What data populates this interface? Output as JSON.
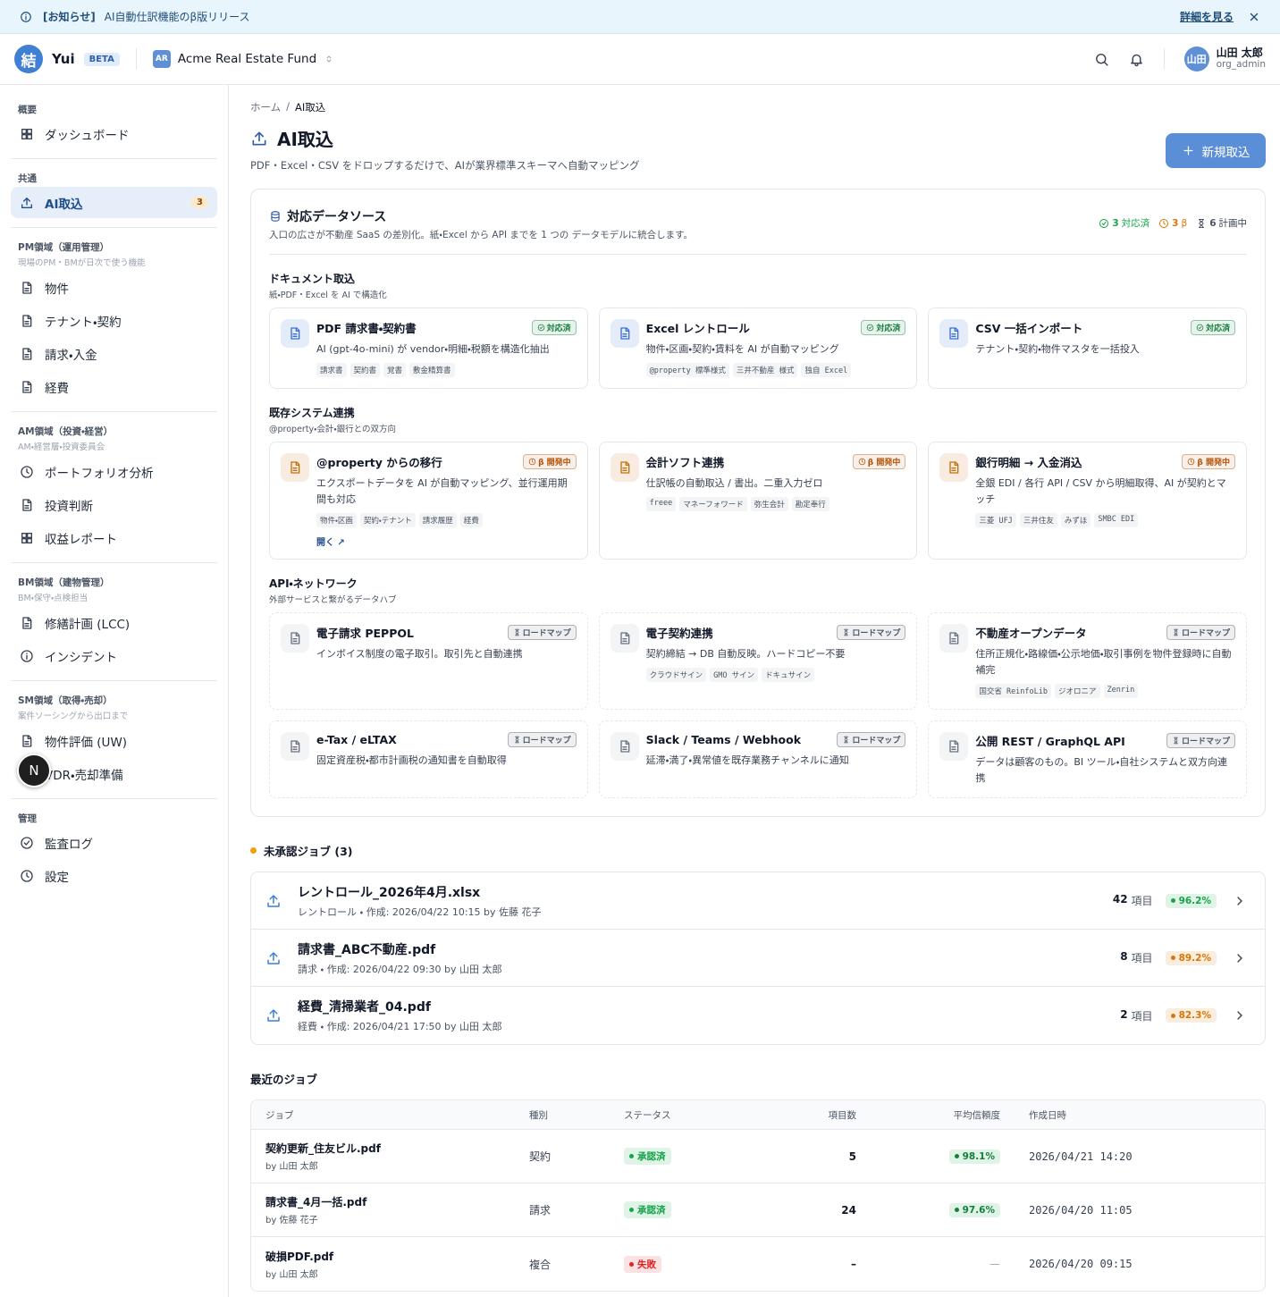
{
  "banner": {
    "tag": "[お知らせ]",
    "text": "AI自動仕訳機能のβ版リリース",
    "link": "詳細を見る"
  },
  "header": {
    "logo": "結",
    "app": "Yui",
    "badge": "BETA",
    "org_initials": "AR",
    "org": "Acme Real Estate Fund",
    "user_initials": "山田",
    "user": "山田 太郎",
    "role": "org_admin"
  },
  "sidebar": {
    "sections": [
      {
        "title": "概要",
        "items": [
          {
            "label": "ダッシュボード"
          }
        ]
      },
      {
        "title": "共通",
        "items": [
          {
            "label": "AI取込",
            "count": 3,
            "active": true
          }
        ]
      },
      {
        "title": "PM領域（運用管理）",
        "subtitle": "現場のPM・BMが日次で使う機能",
        "items": [
          {
            "label": "物件"
          },
          {
            "label": "テナント・契約"
          },
          {
            "label": "請求・入金"
          },
          {
            "label": "経費"
          }
        ]
      },
      {
        "title": "AM領域（投資・経営）",
        "subtitle": "AM・経営層・投資委員会",
        "items": [
          {
            "label": "ポートフォリオ分析"
          },
          {
            "label": "投資判断"
          },
          {
            "label": "収益レポート"
          }
        ]
      },
      {
        "title": "BM領域（建物管理）",
        "subtitle": "BM・保守・点検担当",
        "items": [
          {
            "label": "修繕計画 (LCC)"
          },
          {
            "label": "インシデント"
          }
        ]
      },
      {
        "title": "SM領域（取得・売却）",
        "subtitle": "案件ソーシングから出口まで",
        "items": [
          {
            "label": "物件評価 (UW)"
          },
          {
            "label": "VDR・売却準備"
          }
        ]
      },
      {
        "title": "管理",
        "items": [
          {
            "label": "監査ログ"
          },
          {
            "label": "設定"
          }
        ]
      }
    ]
  },
  "floating": "N",
  "breadcrumb": [
    "ホーム",
    "AI取込"
  ],
  "page": {
    "title": "AI取込",
    "subtitle": "PDF・Excel・CSV をドロップするだけで、AIが業界標準スキーマへ自動マッピング",
    "button": "新規取込"
  },
  "sources": {
    "title": "対応データソース",
    "subtitle": "入口の広さが不動産 SaaS の差別化。紙・Excel から API までを 1 つの データモデルに統合します。",
    "summary": [
      {
        "count": 3,
        "label": "対応済",
        "color": "#16a34a"
      },
      {
        "count": 3,
        "label": "β",
        "color": "#d97706"
      },
      {
        "count": 6,
        "label": "計画中",
        "color": "#4b5563"
      }
    ],
    "groups": [
      {
        "title": "ドキュメント取込",
        "subtitle": "紙・PDF・Excel を AI で構造化",
        "icon_color": "#3b6fd1",
        "dashed": false,
        "cards": [
          {
            "title": "PDF 請求書・契約書",
            "status": "対応済",
            "color": "#15803d",
            "desc": "AI (gpt-4o-mini) が vendor・明細・税額を構造化抽出",
            "tags": [
              "請求書",
              "契約書",
              "覚書",
              "敷金精算書"
            ]
          },
          {
            "title": "Excel レントロール",
            "status": "対応済",
            "color": "#15803d",
            "desc": "物件・区画・契約・賃料を AI が自動マッピング",
            "tags": [
              "@property 標準様式",
              "三井不動産 様式",
              "独自 Excel"
            ]
          },
          {
            "title": "CSV 一括インポート",
            "status": "対応済",
            "color": "#15803d",
            "desc": "テナント・契約・物件マスタを一括投入",
            "tags": []
          }
        ]
      },
      {
        "title": "既存システム連携",
        "subtitle": "@property・会計・銀行との双方向",
        "icon_color": "#c2710c",
        "dashed": false,
        "cards": [
          {
            "title": "@property からの移行",
            "status": "β 開発中",
            "color": "#b45309",
            "desc": "エクスポートデータを AI が自動マッピング、並行運用期間も対応",
            "tags": [
              "物件・区画",
              "契約・テナント",
              "請求履歴",
              "経費"
            ],
            "link": "開く ↗"
          },
          {
            "title": "会計ソフト連携",
            "status": "β 開発中",
            "color": "#b45309",
            "desc": "仕訳帳の自動取込 / 書出。二重入力ゼロ",
            "tags": [
              "freee",
              "マネーフォワード",
              "弥生会計",
              "勘定奉行"
            ]
          },
          {
            "title": "銀行明細 → 入金消込",
            "status": "β 開発中",
            "color": "#b45309",
            "desc": "全銀 EDI / 各行 API / CSV から明細取得、AI が契約とマッチ",
            "tags": [
              "三菱 UFJ",
              "三井住友",
              "みずほ",
              "SMBC EDI"
            ]
          }
        ]
      },
      {
        "title": "API・ネットワーク",
        "subtitle": "外部サービスと繋がるデータハブ",
        "icon_color": "#6b7280",
        "dashed": true,
        "cards": [
          {
            "title": "電子請求 PEPPOL",
            "status": "ロードマップ",
            "color": "#4b5563",
            "desc": "インボイス制度の電子取引。取引先と自動連携",
            "tags": []
          },
          {
            "title": "電子契約連携",
            "status": "ロードマップ",
            "color": "#4b5563",
            "desc": "契約締結 → DB 自動反映。ハードコピー不要",
            "tags": [
              "クラウドサイン",
              "GMO サイン",
              "ドキュサイン"
            ]
          },
          {
            "title": "不動産オープンデータ",
            "status": "ロードマップ",
            "color": "#4b5563",
            "desc": "住所正規化・路線価・公示地価・取引事例を物件登録時に自動補完",
            "tags": [
              "国交省 ReinfoLib",
              "ジオロニア",
              "Zenrin"
            ]
          },
          {
            "title": "e-Tax / eLTAX",
            "status": "ロードマップ",
            "color": "#4b5563",
            "desc": "固定資産税・都市計画税の通知書を自動取得",
            "tags": []
          },
          {
            "title": "Slack / Teams / Webhook",
            "status": "ロードマップ",
            "color": "#4b5563",
            "desc": "延滞・満了・異常値を既存業務チャンネルに通知",
            "tags": []
          },
          {
            "title": "公開 REST / GraphQL API",
            "status": "ロードマップ",
            "color": "#4b5563",
            "desc": "データは顧客のもの。BI ツール・自社システムと双方向連携",
            "tags": []
          }
        ]
      }
    ]
  },
  "pending": {
    "title": "未承認ジョブ (3)",
    "jobs": [
      {
        "name": "レントロール_2026年4月.xlsx",
        "meta": "レントロール ・ 作成: 2026/04/22 10:15 by 佐藤 花子",
        "items": 42,
        "unit": "項目",
        "confidence": "96.2%",
        "color": "#16a34a"
      },
      {
        "name": "請求書_ABC不動産.pdf",
        "meta": "請求 ・ 作成: 2026/04/22 09:30 by 山田 太郎",
        "items": 8,
        "unit": "項目",
        "confidence": "89.2%",
        "color": "#d97706"
      },
      {
        "name": "経費_清掃業者_04.pdf",
        "meta": "経費 ・ 作成: 2026/04/21 17:50 by 山田 太郎",
        "items": 2,
        "unit": "項目",
        "confidence": "82.3%",
        "color": "#d97706"
      }
    ]
  },
  "recent": {
    "title": "最近のジョブ",
    "columns": [
      "ジョブ",
      "種別",
      "ステータス",
      "項目数",
      "平均信頼度",
      "作成日時"
    ],
    "rows": [
      {
        "name": "契約更新_住友ビル.pdf",
        "by": "by 山田 太郎",
        "kind": "契約",
        "status": "承認済",
        "status_color": "#16a34a",
        "items": "5",
        "confidence": "98.1%",
        "date": "2026/04/21 14:20"
      },
      {
        "name": "請求書_4月一括.pdf",
        "by": "by 佐藤 花子",
        "kind": "請求",
        "status": "承認済",
        "status_color": "#16a34a",
        "items": "24",
        "confidence": "97.6%",
        "date": "2026/04/20 11:05"
      },
      {
        "name": "破損PDF.pdf",
        "by": "by 山田 太郎",
        "kind": "複合",
        "status": "失敗",
        "status_color": "#dc2626",
        "items": "–",
        "confidence": "—",
        "date": "2026/04/20 09:15"
      }
    ]
  }
}
